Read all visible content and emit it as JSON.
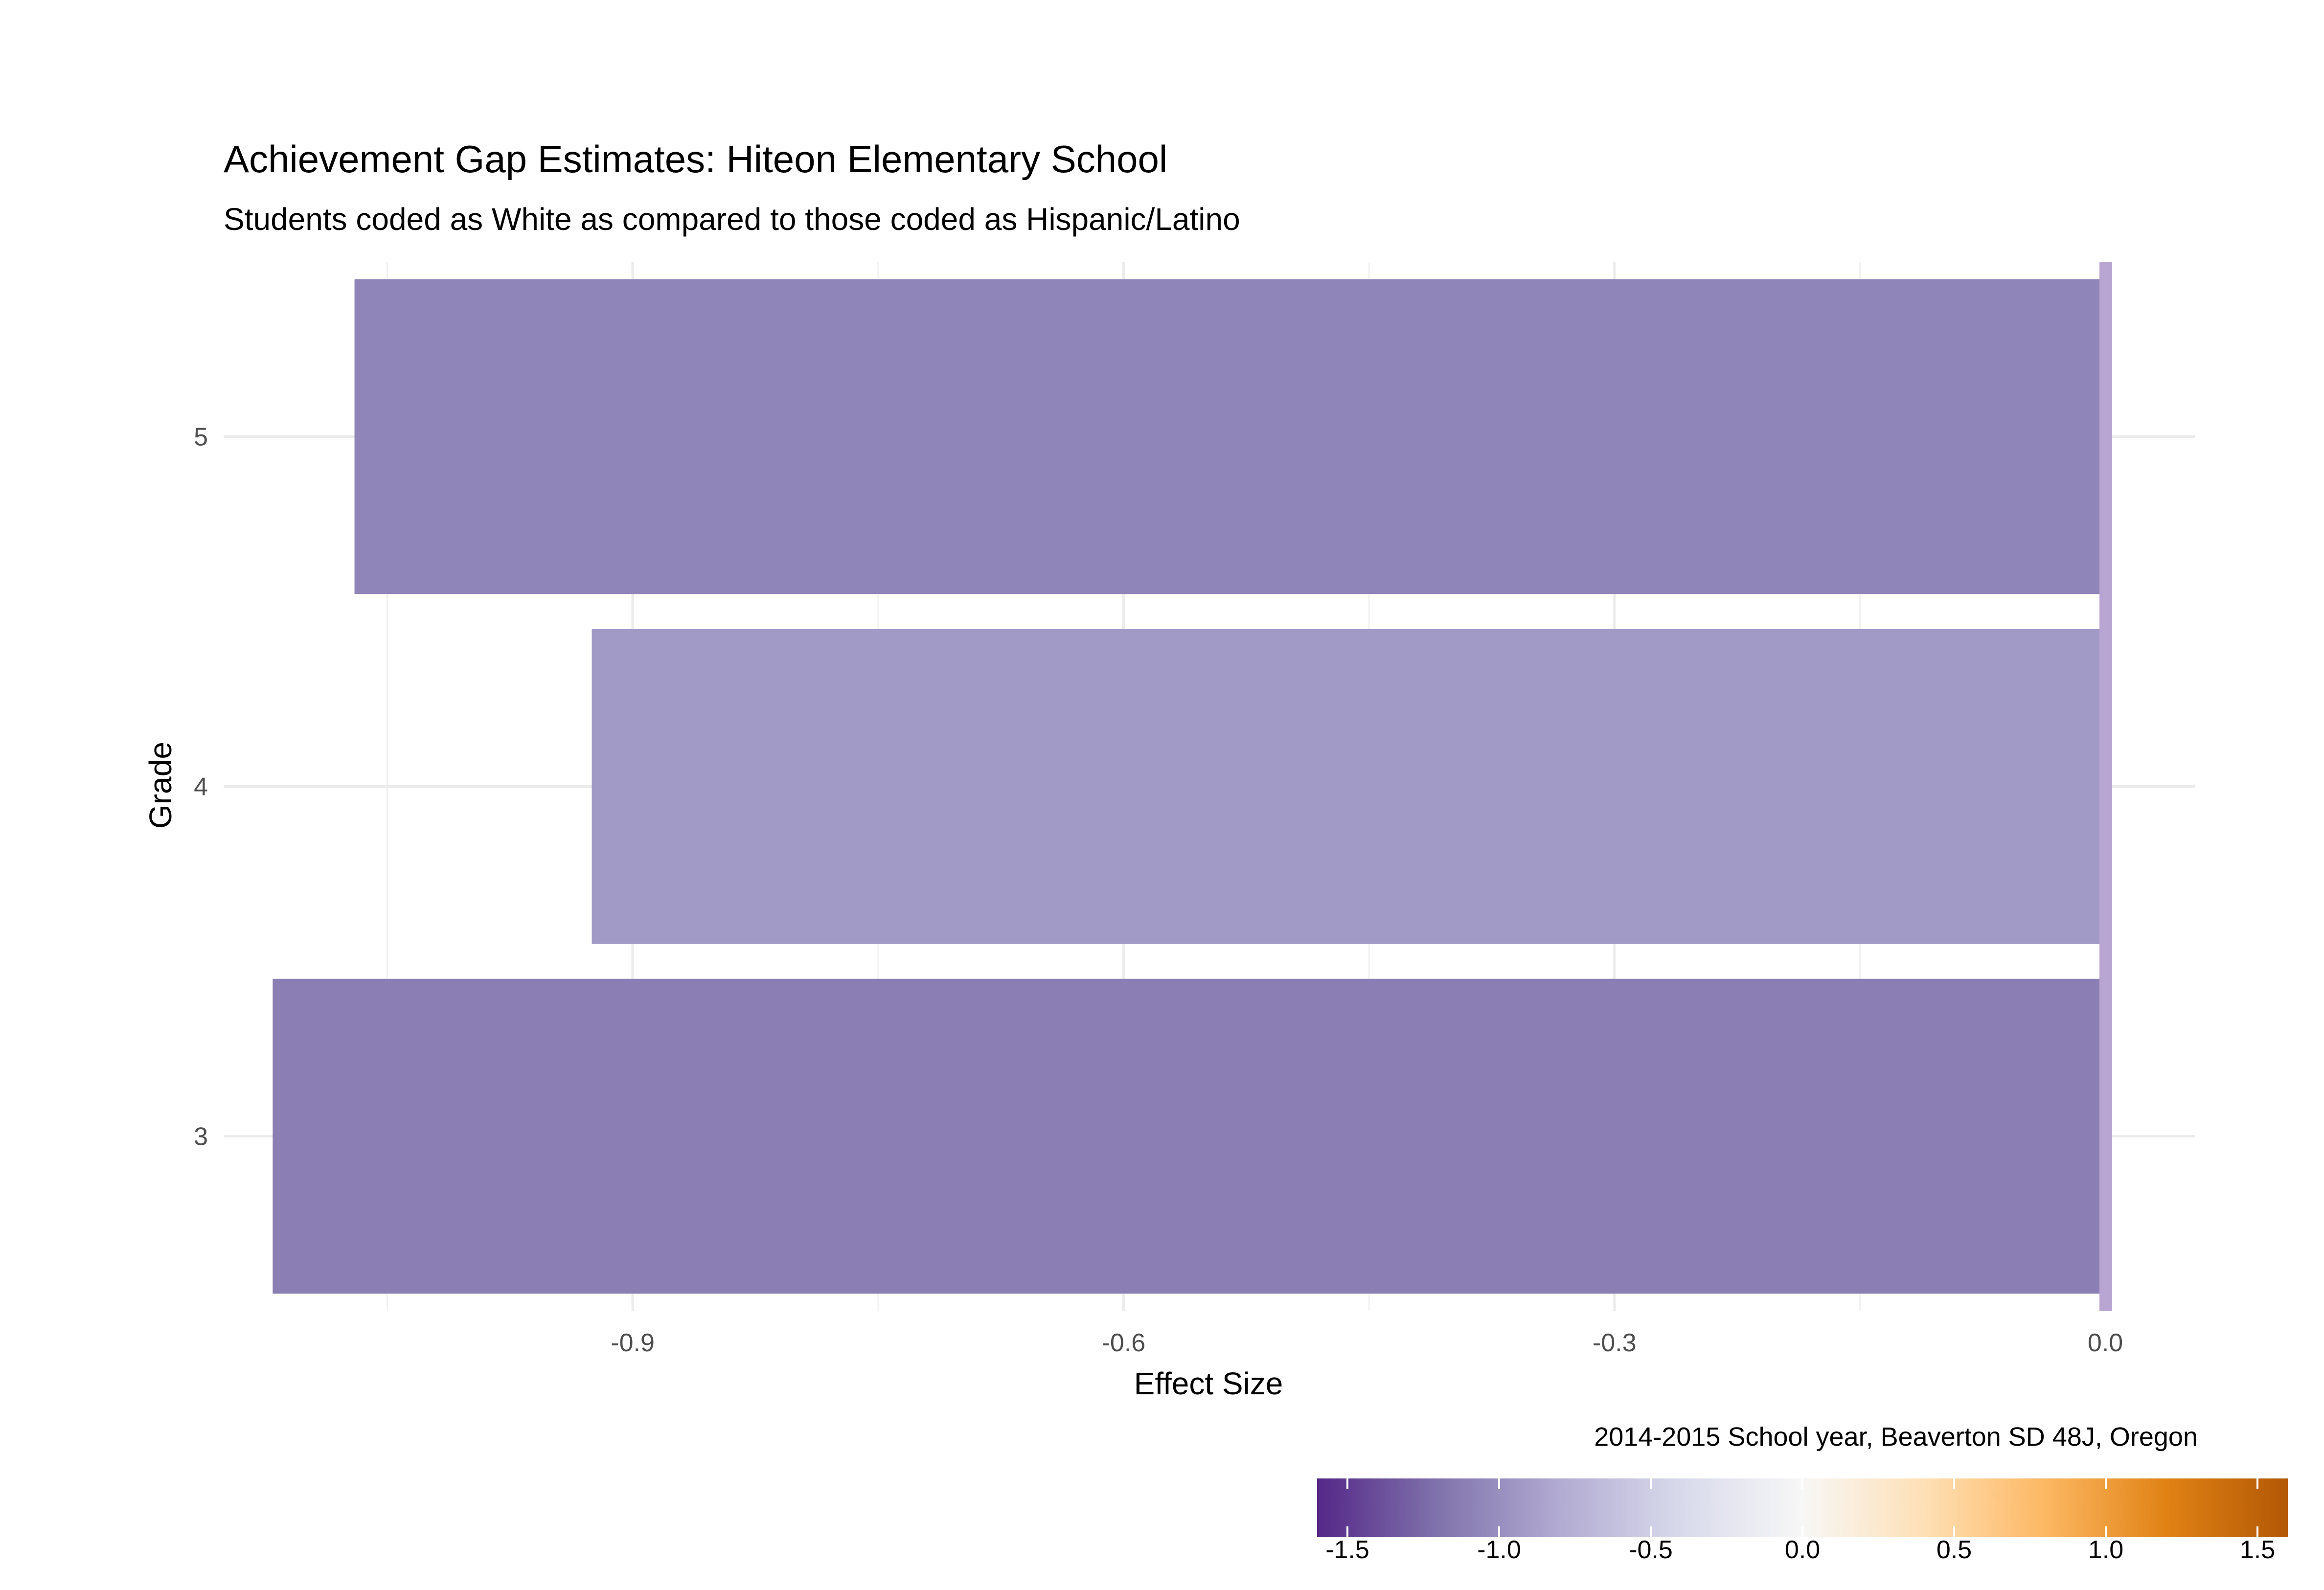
{
  "chart_data": {
    "type": "bar",
    "orientation": "horizontal",
    "title": "Achievement Gap Estimates: Hiteon Elementary School",
    "subtitle": "Students coded as White as compared to those coded as Hispanic/Latino",
    "xlabel": "Effect Size",
    "ylabel": "Grade",
    "caption": "2014-2015 School year, Beaverton SD 48J, Oregon",
    "categories": [
      "3",
      "4",
      "5"
    ],
    "values": [
      -1.12,
      -0.925,
      -1.07
    ],
    "xlim": [
      -1.15,
      0.055
    ],
    "x_ticks": [
      -0.9,
      -0.6,
      -0.3,
      0.0
    ],
    "x_tick_labels": [
      "-0.9",
      "-0.6",
      "-0.3",
      "0.0"
    ],
    "grid": true,
    "reference_line": {
      "x": 0.0,
      "color": "#b8a5d2"
    },
    "legend": {
      "type": "colorbar",
      "position": "bottom-right",
      "range": [
        -1.6,
        1.6
      ],
      "ticks": [
        -1.5,
        -1.0,
        -0.5,
        0.0,
        0.5,
        1.0,
        1.5
      ],
      "tick_labels": [
        "-1.5",
        "-1.0",
        "-0.5",
        "0.0",
        "0.5",
        "1.0",
        "1.5"
      ],
      "colors": [
        "#542788",
        "#8073ac",
        "#b2abd2",
        "#d8daeb",
        "#f7f7f7",
        "#fee0b6",
        "#fdb863",
        "#e08214",
        "#b35806"
      ]
    }
  }
}
